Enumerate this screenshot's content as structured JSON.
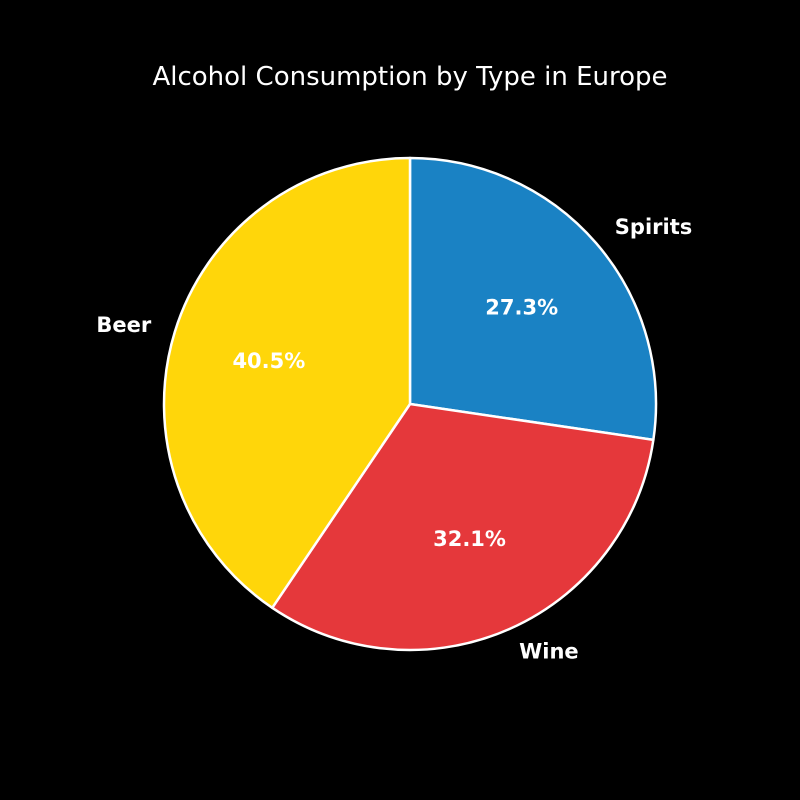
{
  "chart_data": {
    "type": "pie",
    "title": "Alcohol Consumption by Type in Europe",
    "slices": [
      {
        "label": "Spirits",
        "value": 27.3,
        "display": "27.3%",
        "color": "#1a82c4"
      },
      {
        "label": "Wine",
        "value": 32.1,
        "display": "32.1%",
        "color": "#e5383b"
      },
      {
        "label": "Beer",
        "value": 40.5,
        "display": "40.5%",
        "color": "#ffd60a"
      }
    ],
    "start_angle_deg": 90,
    "direction": "clockwise",
    "edge_color": "#ffffff",
    "background": "#000000",
    "text_color": "#ffffff"
  }
}
